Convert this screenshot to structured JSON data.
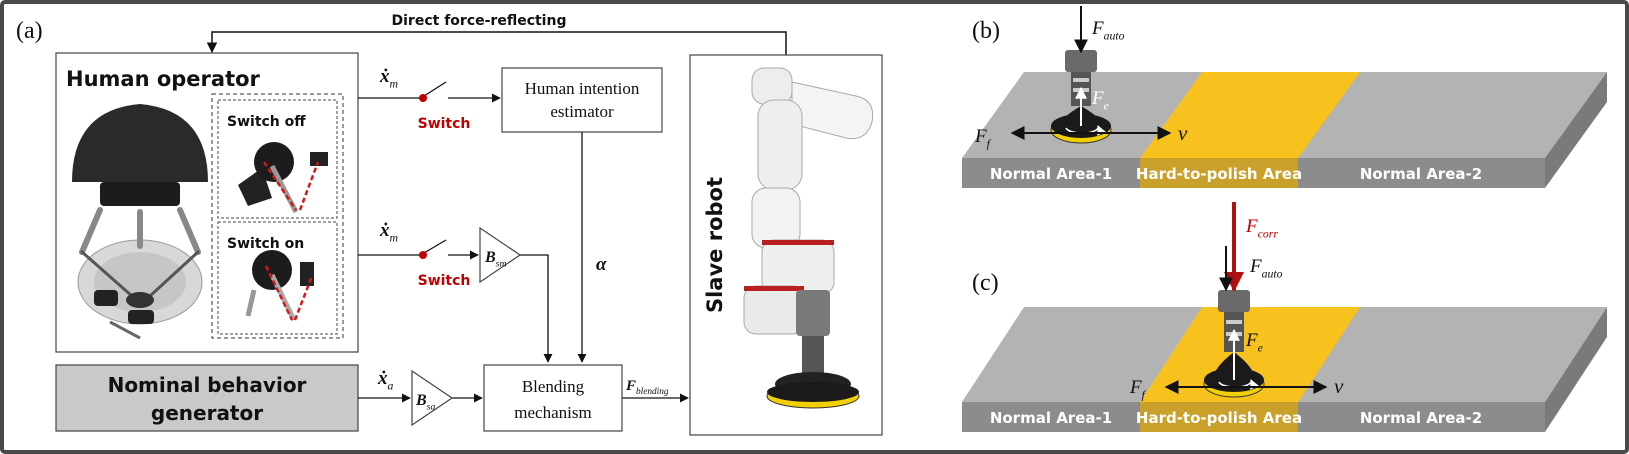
{
  "panel_labels": {
    "a": "(a)",
    "b": "(b)",
    "c": "(c)"
  },
  "feedback_label": "Direct force-reflecting",
  "human_operator": {
    "title": "Human operator",
    "inset_off": "Switch off",
    "inset_on": "Switch on"
  },
  "signals": {
    "xm_top": "ẋm",
    "xm_bottom": "ẋm",
    "xa": "ẋa",
    "alpha": "α",
    "f_blending": "Fblending"
  },
  "switch_label_top": "Switch",
  "switch_label_bottom": "Switch",
  "gains": {
    "b_sm": "Bsm",
    "b_sa": "Bsa"
  },
  "blocks": {
    "intention_line1": "Human intention",
    "intention_line2": "estimator",
    "blending_line1": "Blending",
    "blending_line2": "mechanism",
    "nominal_line1": "Nominal behavior",
    "nominal_line2": "generator",
    "slave_robot": "Slave robot"
  },
  "area_labels": {
    "normal1": "Normal Area-1",
    "hard": "Hard-to-polish Area",
    "normal2": "Normal Area-2"
  },
  "forces": {
    "f_auto": "Fauto",
    "f_e": "Fe",
    "f_f": "Ff",
    "v": "v",
    "f_corr": "Fcorr"
  },
  "colors": {
    "frame": "#4a4a4a",
    "switch_red": "#c00000",
    "gray_box": "#c9c9c9",
    "surface_top": "#b3b3b3",
    "surface_front": "#8c8c8c",
    "surface_side": "#7a7a7a",
    "hard_area": "#f7c21e",
    "hard_front": "#c8a02a",
    "pad_yellow": "#f2d000"
  }
}
